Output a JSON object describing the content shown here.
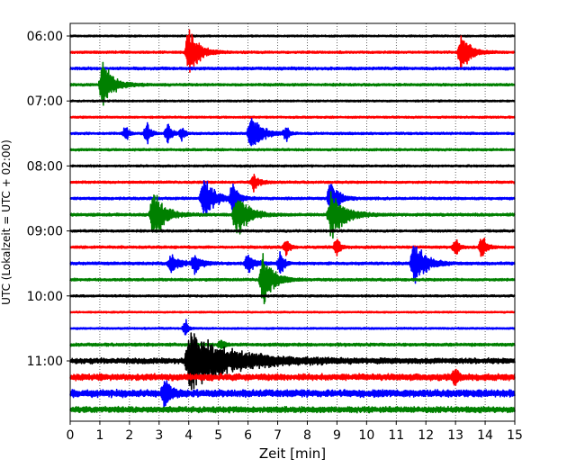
{
  "chart_data": {
    "type": "seismogram",
    "xlabel": "Zeit  [min]",
    "ylabel": "UTC (Lokalzeit = UTC + 02:00)",
    "xlim": [
      0,
      15
    ],
    "x_ticks": [
      "0",
      "1",
      "2",
      "3",
      "4",
      "5",
      "6",
      "7",
      "8",
      "9",
      "10",
      "11",
      "12",
      "13",
      "14",
      "15"
    ],
    "y_ticks": [
      "06:00",
      "07:00",
      "08:00",
      "09:00",
      "10:00",
      "11:00"
    ],
    "y_tick_trace_index": [
      0,
      4,
      8,
      12,
      16,
      20
    ],
    "grid": "vertical-dotted-each-minute",
    "trace_colors": [
      "#000000",
      "#ff0000",
      "#0000ff",
      "#008000"
    ],
    "trace_count": 24,
    "noise_levels": [
      0.35,
      0.45,
      0.55,
      0.5,
      0.35,
      0.4,
      0.45,
      0.45,
      0.4,
      0.45,
      0.5,
      0.55,
      0.45,
      0.5,
      0.55,
      0.5,
      0.4,
      0.3,
      0.35,
      0.6,
      1.1,
      1.3,
      1.5,
      1.2
    ],
    "events": [
      {
        "trace": 1,
        "t": 4.0,
        "amp": 1.6,
        "dur": 0.9
      },
      {
        "trace": 1,
        "t": 13.2,
        "amp": 1.3,
        "dur": 0.8
      },
      {
        "trace": 3,
        "t": 1.1,
        "amp": 1.6,
        "dur": 0.9
      },
      {
        "trace": 6,
        "t": 1.9,
        "amp": 0.6,
        "dur": 0.2
      },
      {
        "trace": 6,
        "t": 2.6,
        "amp": 0.7,
        "dur": 0.3
      },
      {
        "trace": 6,
        "t": 3.3,
        "amp": 0.8,
        "dur": 0.3
      },
      {
        "trace": 6,
        "t": 3.8,
        "amp": 0.5,
        "dur": 0.2
      },
      {
        "trace": 6,
        "t": 6.1,
        "amp": 1.4,
        "dur": 0.9
      },
      {
        "trace": 6,
        "t": 7.3,
        "amp": 0.5,
        "dur": 0.2
      },
      {
        "trace": 9,
        "t": 6.2,
        "amp": 0.6,
        "dur": 0.5
      },
      {
        "trace": 10,
        "t": 4.5,
        "amp": 1.6,
        "dur": 0.9
      },
      {
        "trace": 10,
        "t": 5.5,
        "amp": 1.2,
        "dur": 0.5
      },
      {
        "trace": 10,
        "t": 8.8,
        "amp": 1.4,
        "dur": 0.6
      },
      {
        "trace": 11,
        "t": 2.8,
        "amp": 1.6,
        "dur": 1.0
      },
      {
        "trace": 11,
        "t": 5.6,
        "amp": 1.6,
        "dur": 1.0
      },
      {
        "trace": 11,
        "t": 8.8,
        "amp": 1.6,
        "dur": 1.2
      },
      {
        "trace": 13,
        "t": 7.3,
        "amp": 0.5,
        "dur": 0.3
      },
      {
        "trace": 13,
        "t": 9.0,
        "amp": 0.7,
        "dur": 0.3
      },
      {
        "trace": 13,
        "t": 13.0,
        "amp": 0.7,
        "dur": 0.3
      },
      {
        "trace": 13,
        "t": 13.9,
        "amp": 0.8,
        "dur": 0.4
      },
      {
        "trace": 14,
        "t": 3.4,
        "amp": 0.6,
        "dur": 0.8
      },
      {
        "trace": 14,
        "t": 4.2,
        "amp": 0.6,
        "dur": 0.6
      },
      {
        "trace": 14,
        "t": 6.0,
        "amp": 0.7,
        "dur": 0.6
      },
      {
        "trace": 14,
        "t": 7.1,
        "amp": 0.9,
        "dur": 0.3
      },
      {
        "trace": 14,
        "t": 11.6,
        "amp": 1.6,
        "dur": 1.0
      },
      {
        "trace": 15,
        "t": 6.5,
        "amp": 1.8,
        "dur": 0.9
      },
      {
        "trace": 18,
        "t": 3.9,
        "amp": 0.6,
        "dur": 0.2
      },
      {
        "trace": 19,
        "t": 5.1,
        "amp": 0.4,
        "dur": 0.3
      },
      {
        "trace": 20,
        "t": 4.0,
        "amp": 1.8,
        "dur": 4.0
      },
      {
        "trace": 21,
        "t": 13.0,
        "amp": 0.6,
        "dur": 0.3
      },
      {
        "trace": 22,
        "t": 3.2,
        "amp": 1.0,
        "dur": 0.5
      }
    ]
  }
}
